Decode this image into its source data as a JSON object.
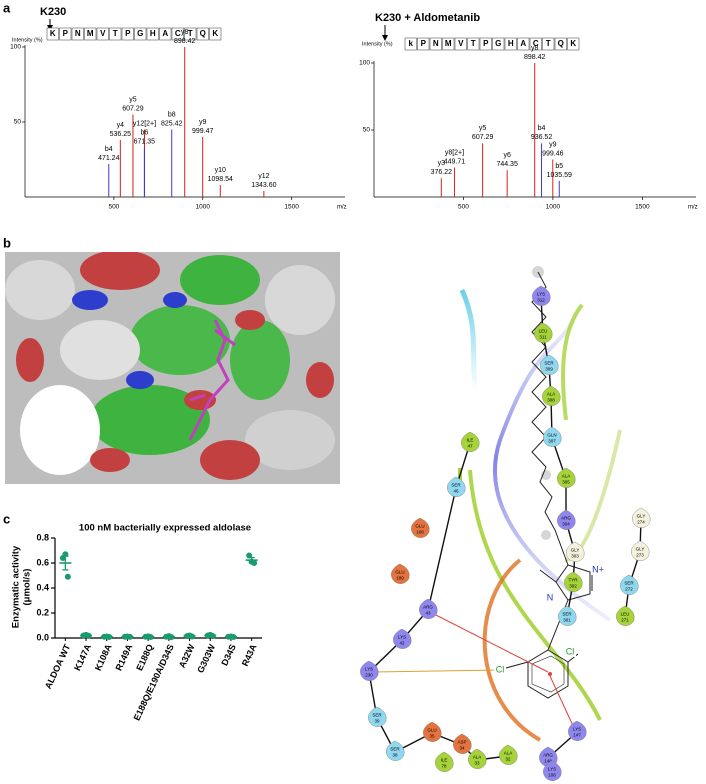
{
  "panel_labels": [
    "a",
    "b",
    "c"
  ],
  "chart_data": [
    {
      "type": "spectrum",
      "title": "K230",
      "ylabel": "Intensity (%)",
      "sequence": [
        "K",
        "P",
        "N",
        "M",
        "V",
        "T",
        "P",
        "G",
        "H",
        "A",
        "C",
        "T",
        "Q",
        "K"
      ],
      "xlabel": "m/z",
      "xlim": [
        0,
        1800
      ],
      "xticks": [
        500,
        1000,
        1500
      ],
      "ylim": [
        0,
        100
      ],
      "yticks": [
        50,
        100
      ],
      "peak_labels": [
        "b4",
        "y4",
        "y5",
        "y12[2+]",
        "b6",
        "b8",
        "y8",
        "y9",
        "y10",
        "y12"
      ],
      "x": [
        471.24,
        536.25,
        607.29,
        672.3,
        671.35,
        825.42,
        898.42,
        999.47,
        1098.54,
        1343.6
      ],
      "x_labels": [
        "471.24",
        "536.25",
        "607.29",
        null,
        "671.35",
        "825.42",
        "898.42",
        "999.47",
        "1098.54",
        "1343.60"
      ],
      "values": [
        22,
        38,
        55,
        45,
        33,
        45,
        100,
        40,
        8,
        4
      ],
      "colors": [
        "#3a3ad0",
        "#d62020",
        "#d62020",
        "#d62020",
        "#3a3ad0",
        "#3a3ad0",
        "#d62020",
        "#d62020",
        "#d62020",
        "#d62020"
      ]
    },
    {
      "type": "spectrum",
      "title": "K230 + Aldometanib",
      "ylabel": "Intensity (%)",
      "sequence": [
        "k",
        "P",
        "N",
        "M",
        "V",
        "T",
        "P",
        "G",
        "H",
        "A",
        "C",
        "T",
        "Q",
        "K"
      ],
      "xlabel": "m/z",
      "xlim": [
        0,
        1800
      ],
      "xticks": [
        500,
        1000,
        1500
      ],
      "ylim": [
        0,
        100
      ],
      "yticks": [
        50,
        100
      ],
      "peak_labels": [
        "y3",
        "y8[2+]",
        "y5",
        "y6",
        "y8",
        "b4",
        "y9",
        "b5"
      ],
      "x": [
        376.22,
        449.71,
        607.29,
        744.35,
        898.42,
        936.52,
        999.46,
        1035.59
      ],
      "x_labels": [
        "376.22",
        "449.71",
        "607.29",
        "744.35",
        "898.42",
        "936.52",
        "999.46",
        "1035.59"
      ],
      "values": [
        14,
        22,
        40,
        20,
        100,
        40,
        28,
        12
      ],
      "colors": [
        "#d62020",
        "#d62020",
        "#d62020",
        "#d62020",
        "#d62020",
        "#3a3ad0",
        "#d62020",
        "#3a3ad0"
      ]
    },
    {
      "type": "dot",
      "title": "100 nM bacterially expressed aldolase",
      "ylabel": [
        "Enzymatic activity",
        "(μmol/s)"
      ],
      "categories": [
        "ALDOA WT",
        "K147A",
        "K108A",
        "R149A",
        "E188Q",
        "E188Q/E190A/D34S",
        "A32W",
        "G303W",
        "D34S",
        "R43A"
      ],
      "values": [
        0.6,
        0.02,
        0.01,
        0.01,
        0.01,
        0.01,
        0.015,
        0.02,
        0.01,
        0.623
      ],
      "errors": [
        0.055,
        0.004,
        0.003,
        0.003,
        0.003,
        0.004,
        0.004,
        0.004,
        0.003,
        0.02
      ],
      "points": [
        [
          0.64,
          0.67,
          0.49
        ],
        [
          0.02,
          0.025,
          0.018
        ],
        [
          0.01,
          0.012,
          0.008
        ],
        [
          0.01,
          0.012,
          0.009
        ],
        [
          0.01,
          0.013,
          0.008
        ],
        [
          0.01,
          0.015,
          0.007
        ],
        [
          0.015,
          0.02,
          0.012
        ],
        [
          0.02,
          0.025,
          0.016
        ],
        [
          0.01,
          0.012,
          0.008
        ],
        [
          0.66,
          0.61,
          0.6
        ]
      ],
      "color": "#1b9a70",
      "ylim": [
        0,
        0.8
      ],
      "yticks": [
        {
          "value": 0,
          "label": "0.0"
        },
        0.2,
        0.4,
        0.6,
        0.8
      ]
    }
  ],
  "interaction_diagram": {
    "residues": [
      {
        "name": "LYS",
        "number": "312",
        "color": "#8f86ee"
      },
      {
        "name": "LEU",
        "number": "311",
        "color": "#a6d33a"
      },
      {
        "name": "SER",
        "number": "309",
        "color": "#8fd8f0"
      },
      {
        "name": "ALA",
        "number": "308",
        "color": "#a6d33a"
      },
      {
        "name": "GLN",
        "number": "307",
        "color": "#8fd8f0"
      },
      {
        "name": "ALA",
        "number": "305",
        "color": "#a6d33a"
      },
      {
        "name": "ARG",
        "number": "304",
        "color": "#8f86ee"
      },
      {
        "name": "GLY",
        "number": "274",
        "color": "#f4f2dc"
      },
      {
        "name": "GLY",
        "number": "303",
        "color": "#f4f2dc"
      },
      {
        "name": "GLY",
        "number": "273",
        "color": "#f4f2dc"
      },
      {
        "name": "TYR",
        "number": "302",
        "color": "#a6d33a"
      },
      {
        "name": "SER",
        "number": "272",
        "color": "#8fd8f0"
      },
      {
        "name": "SER",
        "number": "301",
        "color": "#8fd8f0"
      },
      {
        "name": "LEU",
        "number": "271",
        "color": "#a6d33a"
      },
      {
        "name": "ILE",
        "number": "47",
        "color": "#a6d33a"
      },
      {
        "name": "SER",
        "number": "46",
        "color": "#8fd8f0"
      },
      {
        "name": "GLU",
        "number": "108",
        "color": "#e4733f"
      },
      {
        "name": "GLU",
        "number": "189",
        "color": "#e4733f"
      },
      {
        "name": "ARG",
        "number": "43",
        "color": "#8f86ee"
      },
      {
        "name": "LYS",
        "number": "42",
        "color": "#8f86ee"
      },
      {
        "name": "LYS",
        "number": "230",
        "color": "#8f86ee"
      },
      {
        "name": "SER",
        "number": "39",
        "color": "#8fd8f0"
      },
      {
        "name": "SER",
        "number": "38",
        "color": "#8fd8f0"
      },
      {
        "name": "GLU",
        "number": "35",
        "color": "#e4733f"
      },
      {
        "name": "ASP",
        "number": "34",
        "color": "#e4733f"
      },
      {
        "name": "ILE",
        "number": "78",
        "color": "#a6d33a"
      },
      {
        "name": "ALA",
        "number": "33",
        "color": "#a6d33a"
      },
      {
        "name": "ALA",
        "number": "32",
        "color": "#a6d33a"
      },
      {
        "name": "LYS",
        "number": "147",
        "color": "#8f86ee"
      },
      {
        "name": "ARG",
        "number": "148",
        "color": "#8f86ee"
      },
      {
        "name": "LYS",
        "number": "108",
        "color": "#8f86ee"
      }
    ],
    "atoms": [
      "Cl",
      "Cl",
      "N",
      "N+"
    ]
  }
}
